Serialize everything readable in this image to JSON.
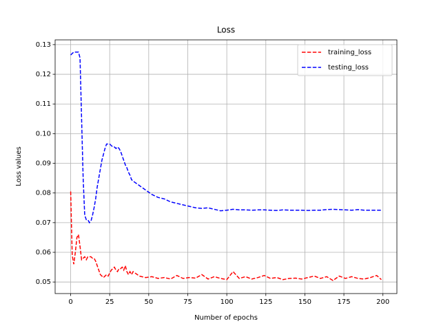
{
  "chart_data": {
    "type": "line",
    "title": "Loss",
    "x_label": "Number of epochs",
    "y_label": "Loss values",
    "x": [
      0,
      1,
      2,
      3,
      4,
      5,
      6,
      7,
      8,
      9,
      10,
      11,
      12,
      13,
      14,
      15,
      16,
      17,
      18,
      19,
      20,
      21,
      22,
      23,
      24,
      25,
      26,
      27,
      28,
      29,
      30,
      31,
      32,
      33,
      34,
      35,
      36,
      37,
      38,
      39,
      40,
      44,
      48,
      52,
      56,
      60,
      64,
      68,
      72,
      76,
      80,
      84,
      88,
      92,
      96,
      100,
      104,
      108,
      112,
      116,
      120,
      124,
      128,
      132,
      136,
      140,
      144,
      148,
      152,
      156,
      160,
      164,
      168,
      172,
      176,
      180,
      184,
      188,
      192,
      196,
      199
    ],
    "series": [
      {
        "name": "training_loss",
        "color": "#ff0000",
        "values": [
          0.0805,
          0.059,
          0.056,
          0.06,
          0.065,
          0.066,
          0.062,
          0.0575,
          0.058,
          0.0585,
          0.0575,
          0.0585,
          0.0585,
          0.0585,
          0.058,
          0.058,
          0.057,
          0.0555,
          0.054,
          0.0525,
          0.052,
          0.0515,
          0.052,
          0.0525,
          0.052,
          0.053,
          0.054,
          0.0545,
          0.055,
          0.054,
          0.0535,
          0.0545,
          0.0545,
          0.055,
          0.054,
          0.0555,
          0.0535,
          0.0525,
          0.0535,
          0.0525,
          0.0535,
          0.052,
          0.0515,
          0.0518,
          0.0512,
          0.0515,
          0.051,
          0.0522,
          0.0512,
          0.0515,
          0.0513,
          0.0525,
          0.051,
          0.0518,
          0.0512,
          0.0508,
          0.0535,
          0.0512,
          0.0518,
          0.051,
          0.0515,
          0.0522,
          0.0512,
          0.0515,
          0.0508,
          0.0512,
          0.0513,
          0.051,
          0.0515,
          0.052,
          0.0512,
          0.0518,
          0.0505,
          0.052,
          0.0512,
          0.0518,
          0.0512,
          0.051,
          0.0515,
          0.0522,
          0.0508
        ]
      },
      {
        "name": "testing_loss",
        "color": "#0000ff",
        "values": [
          0.1265,
          0.127,
          0.1275,
          0.1275,
          0.1275,
          0.1275,
          0.1255,
          0.105,
          0.085,
          0.0725,
          0.071,
          0.071,
          0.07,
          0.0705,
          0.0725,
          0.075,
          0.078,
          0.082,
          0.085,
          0.088,
          0.091,
          0.093,
          0.095,
          0.0965,
          0.0965,
          0.0965,
          0.096,
          0.0955,
          0.0955,
          0.095,
          0.0955,
          0.095,
          0.094,
          0.0925,
          0.091,
          0.0895,
          0.0885,
          0.087,
          0.086,
          0.0845,
          0.084,
          0.0825,
          0.081,
          0.0795,
          0.0785,
          0.078,
          0.077,
          0.0765,
          0.076,
          0.0755,
          0.075,
          0.0748,
          0.075,
          0.0745,
          0.074,
          0.0742,
          0.0745,
          0.0743,
          0.0743,
          0.0742,
          0.0743,
          0.0743,
          0.0742,
          0.0741,
          0.0743,
          0.0742,
          0.0742,
          0.0742,
          0.0741,
          0.0742,
          0.0742,
          0.0744,
          0.0745,
          0.0744,
          0.0743,
          0.0742,
          0.0744,
          0.0742,
          0.0742,
          0.0742,
          0.0742
        ]
      }
    ],
    "xlim": [
      -9.95,
      208.95
    ],
    "ylim": [
      0.0461,
      0.1316
    ],
    "xticks": [
      0,
      25,
      50,
      75,
      100,
      125,
      150,
      175,
      200
    ],
    "yticks": [
      0.05,
      0.06,
      0.07,
      0.08,
      0.09,
      {
        "value": 0.1,
        "label": "0.10"
      },
      0.11,
      0.12,
      0.13
    ],
    "grid": true,
    "legend": "upper-right",
    "line_style": "dashed"
  }
}
